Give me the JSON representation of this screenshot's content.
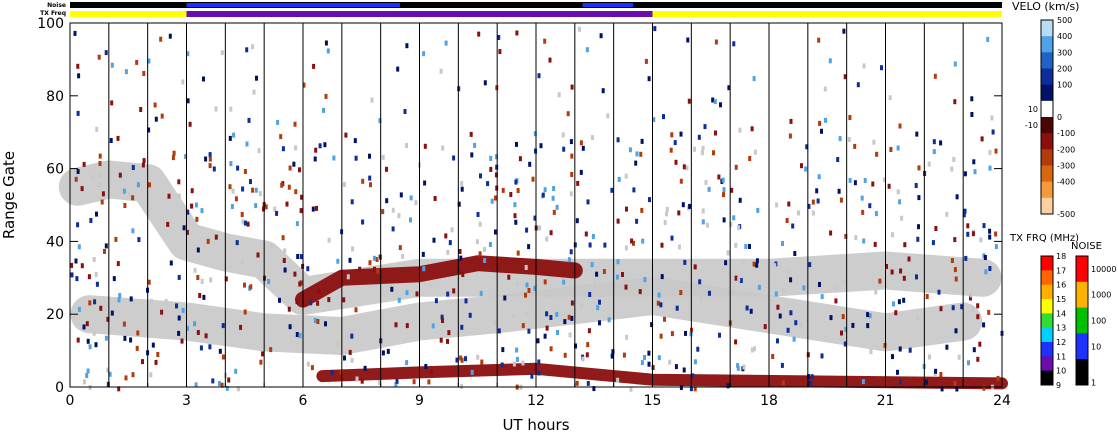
{
  "chart_data": {
    "type": "heatmap",
    "title": "",
    "xlabel": "UT hours",
    "ylabel": "Range Gate",
    "xlim": [
      0,
      24
    ],
    "ylim": [
      0,
      100
    ],
    "x_ticks": [
      "0",
      "3",
      "6",
      "9",
      "12",
      "15",
      "18",
      "21",
      "24"
    ],
    "y_ticks": [
      "0",
      "20",
      "40",
      "60",
      "80",
      "100"
    ],
    "status_bars": {
      "noise_label": "Noise",
      "txfreq_label": "TX Freq",
      "txfreq_segments": [
        {
          "start": 0,
          "end": 3,
          "color": "#ffff00"
        },
        {
          "start": 3,
          "end": 15,
          "color": "#6a0dad"
        },
        {
          "start": 15,
          "end": 24,
          "color": "#ffff00"
        }
      ]
    },
    "velocity_scale": {
      "label": "VELO (km/s)",
      "ticks": [
        "500",
        "400",
        "300",
        "200",
        "100",
        "10",
        "0",
        "-10",
        "-100",
        "-200",
        "-300",
        "-400",
        "-500"
      ],
      "colors": [
        "#b8dcf5",
        "#4ea2e6",
        "#1f63c8",
        "#0b2e9a",
        "#001266",
        "#ffffff",
        "#4a0505",
        "#8b0f0f",
        "#b33a0a",
        "#d9670f",
        "#f59a3a",
        "#fcd0a0"
      ]
    },
    "txfreq_scale": {
      "label": "TX FRQ (MHz)",
      "ticks": [
        "18",
        "17",
        "16",
        "15",
        "14",
        "13",
        "12",
        "11",
        "10",
        "9"
      ],
      "colors": [
        "#ff0000",
        "#ff6400",
        "#ffb000",
        "#ffff00",
        "#32dc32",
        "#00d0ff",
        "#1e32ff",
        "#6a0dad",
        "#000000"
      ]
    },
    "noise_scale": {
      "label": "NOISE",
      "ticks": [
        "10000",
        "1000",
        "100",
        "10",
        "1"
      ],
      "colors": [
        "#ff0000",
        "#ffb000",
        "#00c000",
        "#1e32ff",
        "#000000"
      ]
    },
    "bands": [
      {
        "name": "ground scatter",
        "color": "#c8c8c8",
        "points": [
          [
            0.2,
            55
          ],
          [
            1,
            57
          ],
          [
            2,
            56
          ],
          [
            3,
            40
          ],
          [
            4,
            37
          ],
          [
            5,
            35
          ],
          [
            6,
            25
          ],
          [
            9,
            30
          ],
          [
            12,
            30
          ],
          [
            15,
            30
          ],
          [
            18,
            30
          ],
          [
            21,
            32
          ],
          [
            23.5,
            30
          ]
        ]
      },
      {
        "name": "ground scatter low",
        "color": "#c8c8c8",
        "points": [
          [
            0.5,
            20
          ],
          [
            3,
            18
          ],
          [
            5,
            15
          ],
          [
            7,
            14
          ],
          [
            9,
            18
          ],
          [
            11,
            20
          ],
          [
            15,
            25
          ],
          [
            18,
            20
          ],
          [
            21,
            15
          ],
          [
            23,
            18
          ]
        ]
      },
      {
        "name": "negative velocity",
        "color": "#8b0f0f",
        "points": [
          [
            6,
            24
          ],
          [
            7,
            30
          ],
          [
            9,
            31
          ],
          [
            10.5,
            34
          ],
          [
            12,
            33
          ],
          [
            13,
            32
          ]
        ]
      },
      {
        "name": "near range",
        "color": "#8b0f0f",
        "points": [
          [
            6.5,
            3
          ],
          [
            9,
            4
          ],
          [
            12,
            5
          ],
          [
            15,
            2
          ],
          [
            24,
            1
          ]
        ]
      }
    ]
  }
}
